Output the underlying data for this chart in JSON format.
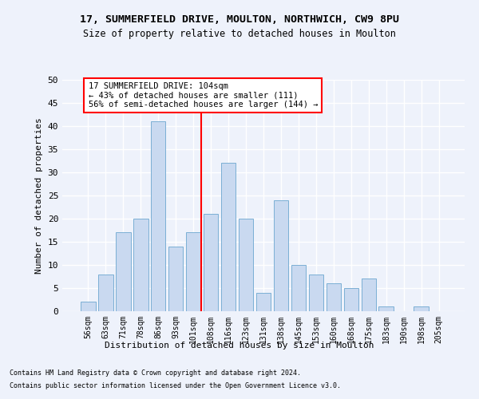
{
  "title1": "17, SUMMERFIELD DRIVE, MOULTON, NORTHWICH, CW9 8PU",
  "title2": "Size of property relative to detached houses in Moulton",
  "xlabel": "Distribution of detached houses by size in Moulton",
  "ylabel": "Number of detached properties",
  "categories": [
    "56sqm",
    "63sqm",
    "71sqm",
    "78sqm",
    "86sqm",
    "93sqm",
    "101sqm",
    "108sqm",
    "116sqm",
    "123sqm",
    "131sqm",
    "138sqm",
    "145sqm",
    "153sqm",
    "160sqm",
    "168sqm",
    "175sqm",
    "183sqm",
    "190sqm",
    "198sqm",
    "205sqm"
  ],
  "values": [
    2,
    8,
    17,
    20,
    41,
    14,
    17,
    21,
    32,
    20,
    4,
    24,
    10,
    8,
    6,
    5,
    7,
    1,
    0,
    1,
    0
  ],
  "bar_color": "#c9d9f0",
  "bar_edge_color": "#7bafd4",
  "vline_color": "red",
  "vline_x": 6.43,
  "annotation_text": "17 SUMMERFIELD DRIVE: 104sqm\n← 43% of detached houses are smaller (111)\n56% of semi-detached houses are larger (144) →",
  "annotation_box_color": "white",
  "annotation_box_edge_color": "red",
  "ylim": [
    0,
    50
  ],
  "yticks": [
    0,
    5,
    10,
    15,
    20,
    25,
    30,
    35,
    40,
    45,
    50
  ],
  "footer1": "Contains HM Land Registry data © Crown copyright and database right 2024.",
  "footer2": "Contains public sector information licensed under the Open Government Licence v3.0.",
  "bg_color": "#eef2fb",
  "grid_color": "white"
}
